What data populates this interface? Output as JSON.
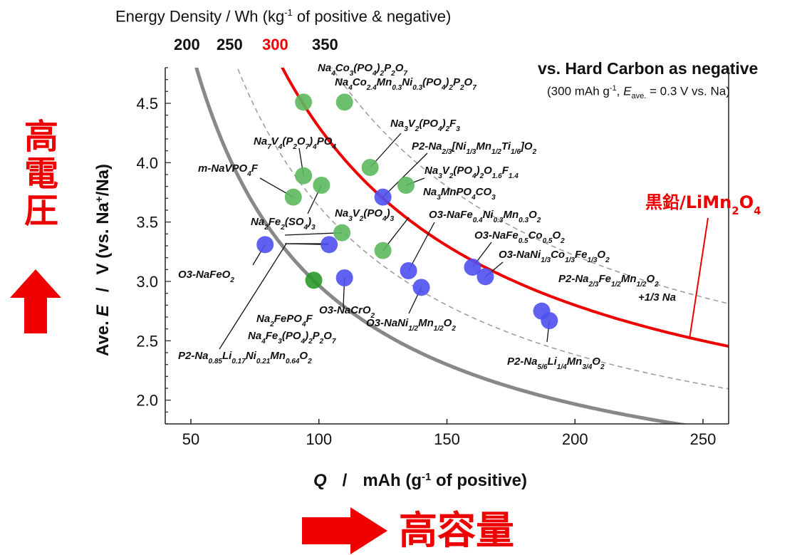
{
  "chart_data": {
    "type": "scatter",
    "xlabel_q": "Q",
    "xlabel_sep": "/",
    "xlabel_unit": "mAh (g",
    "xlabel_sup": "-1",
    "xlabel_rest": " of positive)",
    "ylabel_ave": "Ave.",
    "ylabel_e": "E",
    "ylabel_sep": "/",
    "ylabel_unit": "V (vs. Na",
    "ylabel_sup": "+",
    "ylabel_rest": "/Na)",
    "xlim": [
      40,
      260
    ],
    "ylim": [
      1.8,
      4.8
    ],
    "x_ticks": [
      "50",
      "100",
      "150",
      "200",
      "250"
    ],
    "y_ticks": [
      "2.0",
      "2.5",
      "3.0",
      "3.5",
      "4.0",
      "4.5"
    ],
    "energy_axis": {
      "title": "Energy Density  /   Wh (kg",
      "title_sup": "-1",
      "title_rest": " of positive & negative)",
      "ticks": [
        "200",
        "250",
        "300",
        "350"
      ],
      "highlight_color": "#ee0000"
    },
    "reference": {
      "title": "vs. Hard Carbon as negative",
      "sub_a": "(300 mAh g",
      "sub_sup": "-1",
      "sub_b": ", ",
      "sub_e": "E",
      "sub_esub": "ave.",
      "sub_c": " = 0.3 V vs. Na)"
    },
    "curve_label": {
      "text": "黒鉛/LiMn",
      "sub1": "2",
      "mid": "O",
      "sub2": "4",
      "color": "#ee0000"
    },
    "colors": {
      "green": "#5cb85c",
      "blue": "#5050f0",
      "dark_green": "#2a9a2a",
      "red_curve": "#ee0000",
      "gray_curve": "#888888"
    },
    "points": [
      {
        "x": 94,
        "y": 4.51,
        "color": "green"
      },
      {
        "x": 110,
        "y": 4.51,
        "color": "green"
      },
      {
        "x": 120,
        "y": 3.96,
        "color": "green"
      },
      {
        "x": 94,
        "y": 3.89,
        "color": "green"
      },
      {
        "x": 134,
        "y": 3.81,
        "color": "green"
      },
      {
        "x": 101,
        "y": 3.81,
        "color": "green"
      },
      {
        "x": 90,
        "y": 3.71,
        "color": "green"
      },
      {
        "x": 109,
        "y": 3.41,
        "color": "green"
      },
      {
        "x": 125,
        "y": 3.26,
        "color": "green"
      },
      {
        "x": 98,
        "y": 3.01,
        "color": "dark_green"
      },
      {
        "x": 125,
        "y": 3.71,
        "color": "blue"
      },
      {
        "x": 79,
        "y": 3.31,
        "color": "blue"
      },
      {
        "x": 104,
        "y": 3.31,
        "color": "blue"
      },
      {
        "x": 135,
        "y": 3.09,
        "color": "blue"
      },
      {
        "x": 110,
        "y": 3.03,
        "color": "blue"
      },
      {
        "x": 140,
        "y": 2.95,
        "color": "blue"
      },
      {
        "x": 160,
        "y": 3.12,
        "color": "blue"
      },
      {
        "x": 165,
        "y": 3.04,
        "color": "blue"
      },
      {
        "x": 187,
        "y": 2.75,
        "color": "blue"
      },
      {
        "x": 190,
        "y": 2.67,
        "color": "blue"
      }
    ],
    "labels": [
      {
        "id": "na4co3",
        "text": "Na<tspan baseline-shift='sub' font-size='10'>4</tspan>Co<tspan baseline-shift='sub' font-size='10'>3</tspan>(PO<tspan baseline-shift='sub' font-size='10'>4</tspan>)<tspan baseline-shift='sub' font-size='10'>2</tspan>P<tspan baseline-shift='sub' font-size='10'>2</tspan>O<tspan baseline-shift='sub' font-size='10'>7</tspan>"
      },
      {
        "id": "na4co24",
        "text": "Na<tspan baseline-shift='sub' font-size='10'>4</tspan>Co<tspan baseline-shift='sub' font-size='10'>2.4</tspan>Mn<tspan baseline-shift='sub' font-size='10'>0.3</tspan>Ni<tspan baseline-shift='sub' font-size='10'>0.3</tspan>(PO<tspan baseline-shift='sub' font-size='10'>4</tspan>)<tspan baseline-shift='sub' font-size='10'>2</tspan>P<tspan baseline-shift='sub' font-size='10'>2</tspan>O<tspan baseline-shift='sub' font-size='10'>7</tspan>"
      },
      {
        "id": "na3v2f3",
        "text": "Na<tspan baseline-shift='sub' font-size='10'>3</tspan>V<tspan baseline-shift='sub' font-size='10'>2</tspan>(PO<tspan baseline-shift='sub' font-size='10'>4</tspan>)<tspan baseline-shift='sub' font-size='10'>2</tspan>F<tspan baseline-shift='sub' font-size='10'>3</tspan>"
      },
      {
        "id": "na7v4",
        "text": "Na<tspan baseline-shift='sub' font-size='10'>7</tspan>V<tspan baseline-shift='sub' font-size='10'>4</tspan>(P<tspan baseline-shift='sub' font-size='10'>2</tspan>O<tspan baseline-shift='sub' font-size='10'>7</tspan>)<tspan baseline-shift='sub' font-size='10'>4</tspan>PO<tspan baseline-shift='sub' font-size='10'>4</tspan>"
      },
      {
        "id": "p2nitimn",
        "text": "P2-Na<tspan baseline-shift='sub' font-size='10'>2/3</tspan>[Ni<tspan baseline-shift='sub' font-size='10'>1/3</tspan>Mn<tspan baseline-shift='sub' font-size='10'>1/2</tspan>Ti<tspan baseline-shift='sub' font-size='10'>1/6</tspan>]O<tspan baseline-shift='sub' font-size='10'>2</tspan>"
      },
      {
        "id": "mnavpo4f",
        "text": "m-NaVPO<tspan baseline-shift='sub' font-size='10'>4</tspan>F"
      },
      {
        "id": "na3v2o16",
        "text": "Na<tspan baseline-shift='sub' font-size='10'>3</tspan>V<tspan baseline-shift='sub' font-size='10'>2</tspan>(PO<tspan baseline-shift='sub' font-size='10'>4</tspan>)<tspan baseline-shift='sub' font-size='10'>2</tspan>O<tspan baseline-shift='sub' font-size='10'>1.6</tspan>F<tspan baseline-shift='sub' font-size='10'>1.4</tspan>"
      },
      {
        "id": "na3mnpo4co3",
        "text": "Na<tspan baseline-shift='sub' font-size='10'>3</tspan>MnPO<tspan baseline-shift='sub' font-size='10'>4</tspan>CO<tspan baseline-shift='sub' font-size='10'>3</tspan>"
      },
      {
        "id": "o3fenimn",
        "text": "O3-NaFe<tspan baseline-shift='sub' font-size='10'>0.4</tspan>Ni<tspan baseline-shift='sub' font-size='10'>0.3</tspan>Mn<tspan baseline-shift='sub' font-size='10'>0.3</tspan>O<tspan baseline-shift='sub' font-size='10'>2</tspan>"
      },
      {
        "id": "na2fe2so4",
        "text": "Na<tspan baseline-shift='sub' font-size='10'>2</tspan>Fe<tspan baseline-shift='sub' font-size='10'>2</tspan>(SO<tspan baseline-shift='sub' font-size='10'>4</tspan>)<tspan baseline-shift='sub' font-size='10'>3</tspan>"
      },
      {
        "id": "na3v2po43",
        "text": "Na<tspan baseline-shift='sub' font-size='10'>3</tspan>V<tspan baseline-shift='sub' font-size='10'>2</tspan>(PO<tspan baseline-shift='sub' font-size='10'>4</tspan>)<tspan baseline-shift='sub' font-size='10'>3</tspan>"
      },
      {
        "id": "o3feco",
        "text": "O3-NaFe<tspan baseline-shift='sub' font-size='10'>0.5</tspan>Co<tspan baseline-shift='sub' font-size='10'>0.5</tspan>O<tspan baseline-shift='sub' font-size='10'>2</tspan>"
      },
      {
        "id": "o3nicofe",
        "text": "O3-NaNi<tspan baseline-shift='sub' font-size='10'>1/3</tspan>Co<tspan baseline-shift='sub' font-size='10'>1/3</tspan>Fe<tspan baseline-shift='sub' font-size='10'>1/3</tspan>O<tspan baseline-shift='sub' font-size='10'>2</tspan>"
      },
      {
        "id": "o3nafeo2",
        "text": "O3-NaFeO<tspan baseline-shift='sub' font-size='10'>2</tspan>"
      },
      {
        "id": "p2fe12",
        "text": "P2-Na<tspan baseline-shift='sub' font-size='10'>2/3</tspan>Fe<tspan baseline-shift='sub' font-size='10'>1/2</tspan>Mn<tspan baseline-shift='sub' font-size='10'>1/2</tspan>O<tspan baseline-shift='sub' font-size='10'>2</tspan>"
      },
      {
        "id": "plus13na",
        "text": "+1/3 Na"
      },
      {
        "id": "na2fepo4f",
        "text": "Na<tspan baseline-shift='sub' font-size='10'>2</tspan>FePO<tspan baseline-shift='sub' font-size='10'>4</tspan>F"
      },
      {
        "id": "o3nacro2",
        "text": "O3-NaCrO<tspan baseline-shift='sub' font-size='10'>2</tspan>"
      },
      {
        "id": "o3nimn",
        "text": "O3-NaNi<tspan baseline-shift='sub' font-size='10'>1/2</tspan>Mn<tspan baseline-shift='sub' font-size='10'>1/2</tspan>O<tspan baseline-shift='sub' font-size='10'>2</tspan>"
      },
      {
        "id": "na4fe3",
        "text": "Na<tspan baseline-shift='sub' font-size='10'>4</tspan>Fe<tspan baseline-shift='sub' font-size='10'>3</tspan>(PO<tspan baseline-shift='sub' font-size='10'>4</tspan>)<tspan baseline-shift='sub' font-size='10'>2</tspan>P<tspan baseline-shift='sub' font-size='10'>2</tspan>O<tspan baseline-shift='sub' font-size='10'>7</tspan>"
      },
      {
        "id": "p2li",
        "text": "P2-Na<tspan baseline-shift='sub' font-size='10'>0.85</tspan>Li<tspan baseline-shift='sub' font-size='10'>0.17</tspan>Ni<tspan baseline-shift='sub' font-size='10'>0.21</tspan>Mn<tspan baseline-shift='sub' font-size='10'>0.64</tspan>O<tspan baseline-shift='sub' font-size='10'>2</tspan>"
      },
      {
        "id": "p2li14",
        "text": "P2-Na<tspan baseline-shift='sub' font-size='10'>5/6</tspan>Li<tspan baseline-shift='sub' font-size='10'>1/4</tspan>Mn<tspan baseline-shift='sub' font-size='10'>3/4</tspan>O<tspan baseline-shift='sub' font-size='10'>2</tspan>"
      }
    ]
  },
  "annotations": {
    "high_voltage": "高電圧",
    "high_capacity": "高容量",
    "arrow_up": "up-arrow-icon",
    "arrow_right": "right-arrow-icon"
  }
}
